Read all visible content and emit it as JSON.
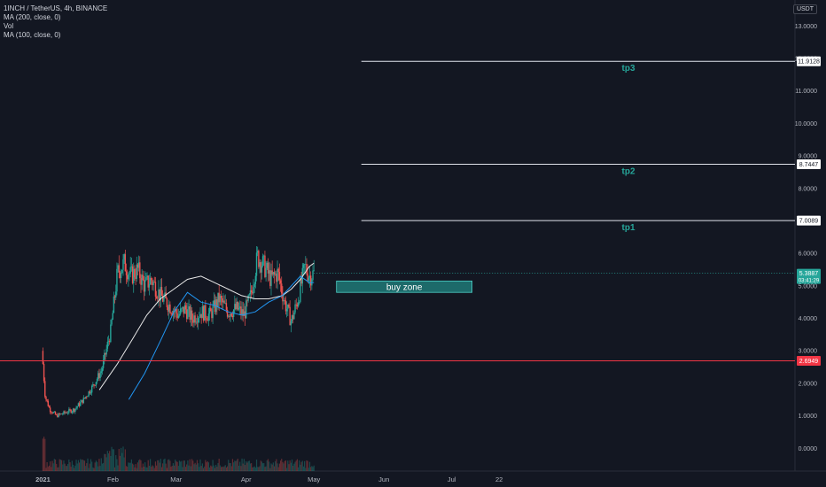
{
  "legend": {
    "symbol": "1INCH / TetherUS, 4h, BINANCE",
    "indicator1": "MA (200, close, 0)",
    "indicator2": "Vol",
    "indicator3": "MA (100, close, 0)"
  },
  "currency": "USDT",
  "colors": {
    "background": "#131722",
    "up": "#26a69a",
    "down": "#ef5350",
    "ma200": "#e8e8e8",
    "ma100": "#2196f3",
    "support_line": "#f23645",
    "target_label": "#26a69a",
    "buy_zone_fill": "#1d6a6a",
    "buy_zone_text": "#ffffff"
  },
  "chart_data": {
    "type": "candlestick",
    "y_axis": {
      "ticks": [
        "13.0000",
        "12.0000",
        "11.0000",
        "10.0000",
        "9.0000",
        "8.0000",
        "7.0000",
        "6.0000",
        "5.0000",
        "4.0000",
        "3.0000",
        "2.0000",
        "1.0000",
        "0.0000"
      ],
      "range": [
        -0.7,
        13.8
      ]
    },
    "x_axis": {
      "ticks": [
        "2021",
        "Feb",
        "Mar",
        "Apr",
        "May",
        "Jun",
        "Jul",
        "22"
      ],
      "tick_days": [
        0,
        31,
        59,
        90,
        120,
        151,
        181,
        202
      ],
      "range_days": [
        -19,
        333
      ]
    },
    "price_path": {
      "days": [
        0,
        1,
        3,
        6,
        10,
        14,
        18,
        22,
        26,
        30,
        33,
        36,
        39,
        42,
        45,
        48,
        52,
        56,
        60,
        63,
        66,
        70,
        74,
        78,
        82,
        86,
        89,
        92,
        95,
        98,
        101,
        104,
        107,
        110,
        113,
        116,
        118,
        120
      ],
      "close": [
        2.6,
        1.6,
        1.2,
        1.0,
        1.1,
        1.2,
        1.5,
        1.9,
        2.4,
        3.6,
        5.4,
        5.7,
        5.3,
        5.5,
        5.0,
        5.2,
        4.7,
        4.4,
        4.1,
        4.3,
        4.0,
        4.2,
        4.1,
        4.6,
        4.2,
        4.3,
        4.1,
        4.7,
        5.9,
        5.6,
        5.2,
        5.4,
        4.5,
        3.9,
        4.6,
        5.6,
        5.3,
        5.39
      ]
    },
    "ma100": {
      "days": [
        38,
        45,
        52,
        58,
        64,
        70,
        76,
        82,
        88,
        94,
        100,
        106,
        110,
        114,
        118,
        120
      ],
      "values": [
        1.5,
        2.3,
        3.3,
        4.2,
        4.8,
        4.5,
        4.4,
        4.2,
        4.1,
        4.2,
        4.5,
        4.7,
        5.0,
        5.3,
        5.1,
        5.1
      ]
    },
    "ma200": {
      "days": [
        25,
        33,
        40,
        46,
        52,
        58,
        64,
        70,
        76,
        82,
        88,
        94,
        100,
        106,
        110,
        114,
        118,
        120
      ],
      "values": [
        1.8,
        2.6,
        3.4,
        4.1,
        4.6,
        4.9,
        5.2,
        5.3,
        5.1,
        4.9,
        4.7,
        4.6,
        4.6,
        4.7,
        4.9,
        5.2,
        5.6,
        5.7
      ]
    },
    "horizontal_lines": [
      {
        "label": "tp3",
        "price": 11.9128,
        "price_label": "11.9128",
        "start_day": 141
      },
      {
        "label": "tp2",
        "price": 8.7447,
        "price_label": "8.7447",
        "start_day": 141
      },
      {
        "label": "tp1",
        "price": 7.0089,
        "price_label": "7.0089",
        "start_day": 141
      }
    ],
    "support_line": {
      "price": 2.6949,
      "price_label": "2.6949"
    },
    "last_price": {
      "value": "5.3887",
      "countdown": "03:41:29"
    },
    "buy_zone": {
      "label": "buy zone",
      "start_day": 130,
      "end_day": 190,
      "top": 5.15,
      "bottom": 4.8
    }
  }
}
